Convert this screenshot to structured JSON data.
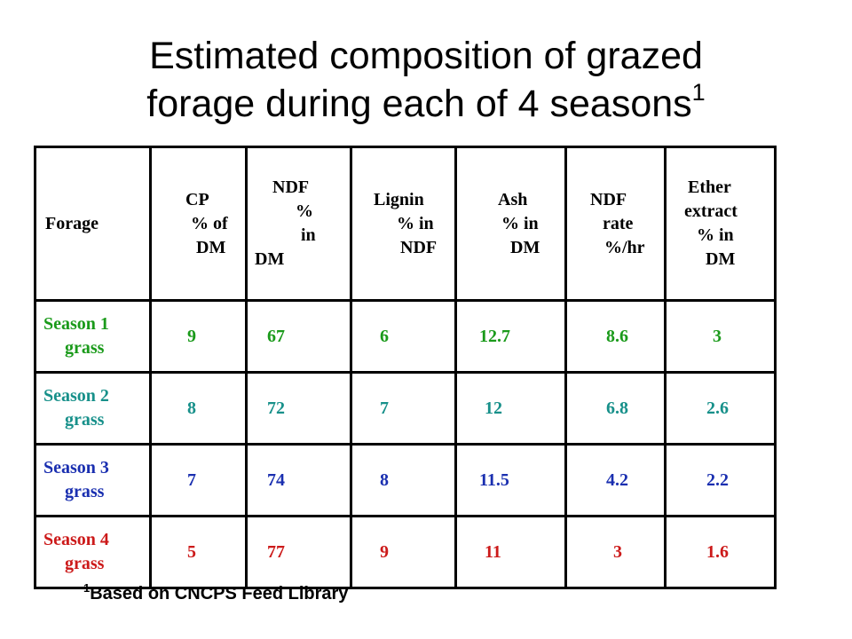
{
  "title": {
    "line1": "Estimated composition of grazed",
    "line2": "forage during each of 4 seasons",
    "superscript": "1"
  },
  "table": {
    "headers": {
      "forage": "Forage",
      "cp": [
        "CP",
        "% of",
        "DM"
      ],
      "ndf": [
        "NDF",
        "%",
        "in",
        "DM"
      ],
      "lignin": [
        "Lignin",
        "% in",
        "NDF"
      ],
      "ash": [
        "Ash",
        "% in",
        "DM"
      ],
      "ndf_rate": [
        "NDF",
        "rate",
        "%/hr"
      ],
      "ether": [
        "Ether",
        "extract",
        "% in",
        "DM"
      ]
    },
    "rows": [
      {
        "season": "Season 1",
        "forage": "grass",
        "color": "#1a9a1a",
        "cp": "9",
        "ndf": "67",
        "lignin": "6",
        "ash": "12.7",
        "ndf_rate": "8.6",
        "ether": "3"
      },
      {
        "season": "Season 2",
        "forage": "grass",
        "color": "#17908a",
        "cp": "8",
        "ndf": "72",
        "lignin": "7",
        "ash": "12",
        "ndf_rate": "6.8",
        "ether": "2.6"
      },
      {
        "season": "Season 3",
        "forage": "grass",
        "color": "#1a2fb0",
        "cp": "7",
        "ndf": "74",
        "lignin": "8",
        "ash": "11.5",
        "ndf_rate": "4.2",
        "ether": "2.2"
      },
      {
        "season": "Season 4",
        "forage": "grass",
        "color": "#cc1a1a",
        "cp": "5",
        "ndf": "77",
        "lignin": "9",
        "ash": "11",
        "ndf_rate": "3",
        "ether": "1.6"
      }
    ]
  },
  "footnote": {
    "marker": "1",
    "text": "Based on CNCPS Feed Library"
  }
}
